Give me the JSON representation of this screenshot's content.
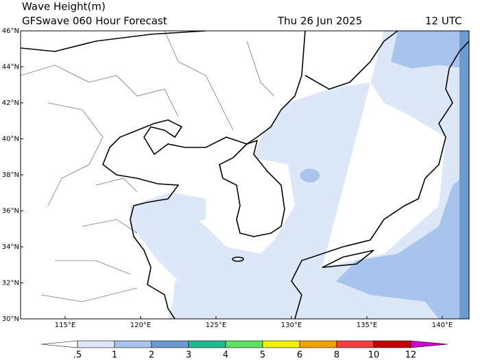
{
  "header": {
    "title": "Wave Height(m)",
    "subtitle": "GFSwave 060 Hour Forecast",
    "date": "Thu 26 Jun 2025",
    "time": "12 UTC"
  },
  "map": {
    "lat_labels": [
      "46°N",
      "44°N",
      "42°N",
      "40°N",
      "38°N",
      "36°N",
      "34°N",
      "32°N",
      "30°N"
    ],
    "lon_labels": [
      "115°E",
      "120°E",
      "125°E",
      "130°E",
      "135°E",
      "140°E"
    ]
  },
  "colorbar": {
    "ticks": [
      {
        "value": 0.5,
        "label": ".5"
      },
      1,
      2,
      3,
      4,
      5,
      6,
      8,
      10,
      12
    ],
    "colors": [
      "#ffffff",
      "#dce8f8",
      "#a8c4ec",
      "#6e9ad4",
      "#28b890",
      "#60e060",
      "#f0f000",
      "#f0a000",
      "#f04040",
      "#c00000",
      "#d000d0"
    ]
  }
}
